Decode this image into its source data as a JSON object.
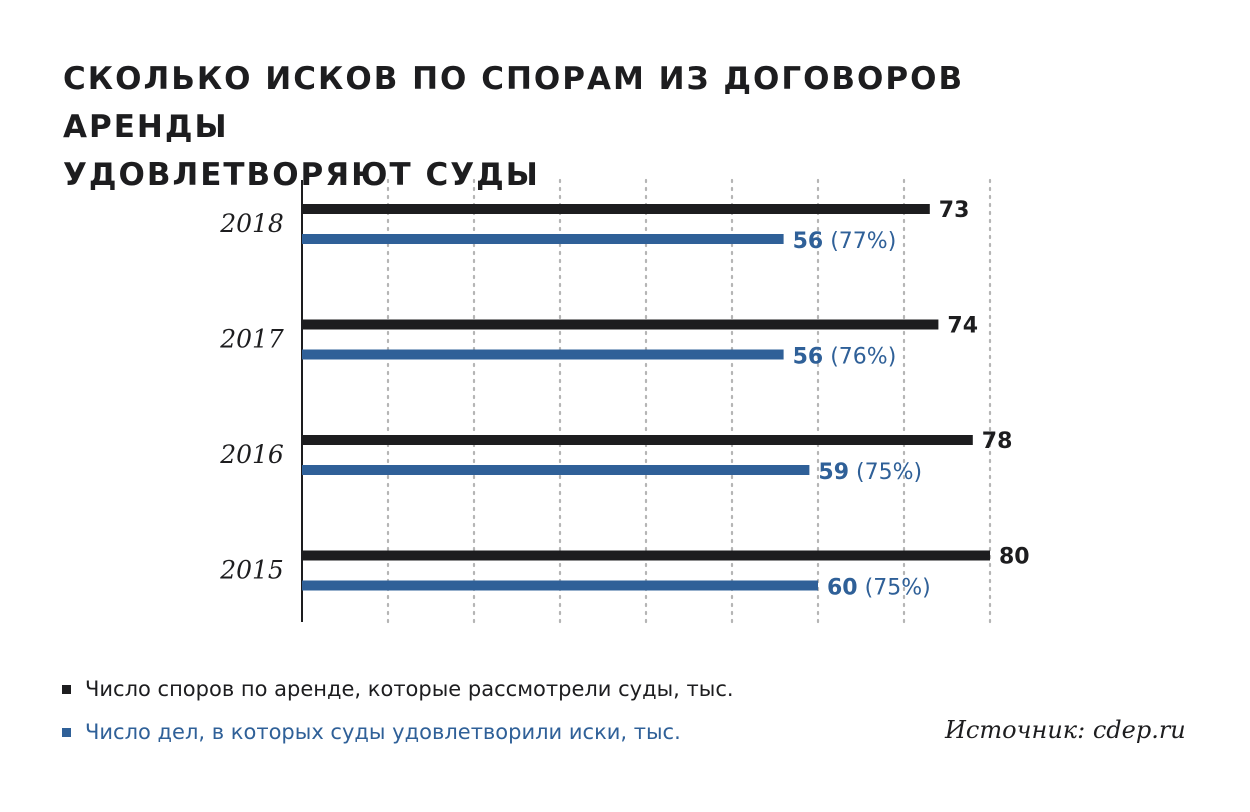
{
  "title": {
    "line1": "Сколько исков по спорам из договоров аренды",
    "line2": "удовлетворяют суды"
  },
  "legend": {
    "total": "Число споров по аренде, которые рассмотрели суды, тыс.",
    "satisfied": "Число дел, в которых суды удовлетворили иски, тыс."
  },
  "source": "Источник: cdep.ru",
  "colors": {
    "total": "#1d1d1f",
    "satisfied": "#2f6098",
    "grid": "#b5b5b5"
  },
  "chart_data": {
    "type": "bar",
    "orientation": "horizontal",
    "title": "Сколько исков по спорам из договоров аренды удовлетворяют суды",
    "categories": [
      "2018",
      "2017",
      "2016",
      "2015"
    ],
    "series": [
      {
        "name": "Число споров по аренде, которые рассмотрели суды, тыс.",
        "values": [
          73,
          74,
          78,
          80
        ]
      },
      {
        "name": "Число дел, в которых суды удовлетворили иски, тыс.",
        "values": [
          56,
          56,
          59,
          60
        ],
        "share_labels": [
          "(77%)",
          "(76%)",
          "(75%)",
          "(75%)"
        ]
      }
    ],
    "xlim": [
      0,
      80
    ],
    "grid": true,
    "legend_position": "bottom-left"
  }
}
